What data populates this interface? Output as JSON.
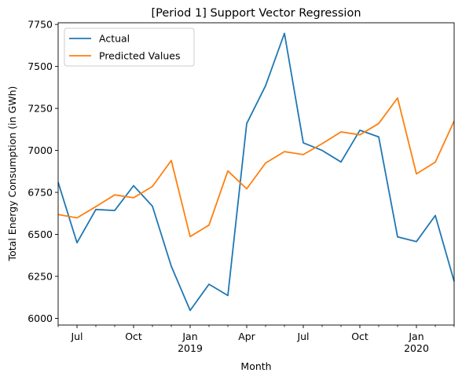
{
  "chart_data": {
    "type": "line",
    "title": "[Period 1] Support Vector Regression",
    "xlabel": "Month",
    "ylabel": "Total Energy Consumption (in GWh)",
    "ylim": [
      5960,
      7760
    ],
    "yticks": [
      6000,
      6250,
      6500,
      6750,
      7000,
      7250,
      7500,
      7750
    ],
    "grid": false,
    "legend_position": "top-left",
    "x": [
      "2018-06",
      "2018-07",
      "2018-08",
      "2018-09",
      "2018-10",
      "2018-11",
      "2018-12",
      "2019-01",
      "2019-02",
      "2019-03",
      "2019-04",
      "2019-05",
      "2019-06",
      "2019-07",
      "2019-08",
      "2019-09",
      "2019-10",
      "2019-11",
      "2019-12",
      "2020-01",
      "2020-02",
      "2020-03"
    ],
    "xticks": [
      {
        "month": "2018-07",
        "label": "Jul",
        "sublabel": ""
      },
      {
        "month": "2018-10",
        "label": "Oct",
        "sublabel": ""
      },
      {
        "month": "2019-01",
        "label": "Jan",
        "sublabel": "2019"
      },
      {
        "month": "2019-04",
        "label": "Apr",
        "sublabel": ""
      },
      {
        "month": "2019-07",
        "label": "Jul",
        "sublabel": ""
      },
      {
        "month": "2019-10",
        "label": "Oct",
        "sublabel": ""
      },
      {
        "month": "2020-01",
        "label": "Jan",
        "sublabel": "2020"
      }
    ],
    "series": [
      {
        "name": "Actual",
        "color": "#1f77b4",
        "values": [
          6810,
          6450,
          6648,
          6642,
          6790,
          6668,
          6310,
          6047,
          6203,
          6136,
          7160,
          7385,
          7697,
          7045,
          7000,
          6931,
          7120,
          7080,
          6485,
          6457,
          6612,
          6220
        ]
      },
      {
        "name": "Predicted Values",
        "color": "#ff7f0e",
        "values": [
          6618,
          6598,
          6665,
          6735,
          6718,
          6785,
          6940,
          6487,
          6555,
          6878,
          6771,
          6925,
          6993,
          6975,
          7040,
          7110,
          7093,
          7160,
          7312,
          6860,
          6930,
          7175
        ]
      }
    ]
  }
}
